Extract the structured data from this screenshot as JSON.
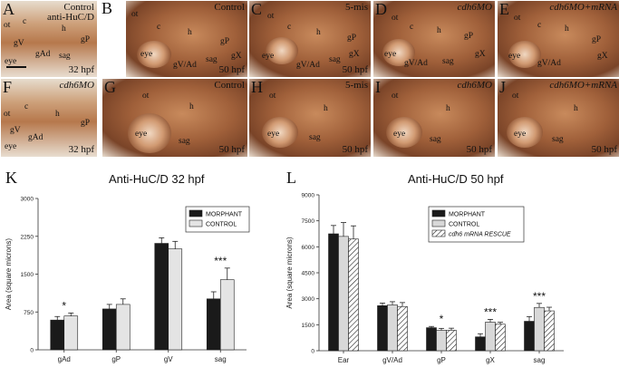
{
  "panels": [
    {
      "letter": "A",
      "title": "Control",
      "title2": "anti-HuC/D",
      "time": "32 hpf",
      "labels": {
        "ot": "ot",
        "c": "c",
        "h": "h",
        "gP": "gP",
        "gV": "gV",
        "gAd": "gAd",
        "sag": "sag",
        "eye": "eye"
      }
    },
    {
      "letter": "B",
      "title": "Control",
      "time": "50 hpf",
      "labels": {
        "ot": "ot",
        "c": "c",
        "h": "h",
        "gP": "gP",
        "gX": "gX",
        "gVAd": "gV/Ad",
        "sag": "sag",
        "eye": "eye"
      }
    },
    {
      "letter": "C",
      "title": "5-mis",
      "time": "50 hpf",
      "labels": {
        "ot": "ot",
        "c": "c",
        "h": "h",
        "gP": "gP",
        "gX": "gX",
        "gVAd": "gV/Ad",
        "sag": "sag",
        "eye": "eye"
      }
    },
    {
      "letter": "D",
      "title": "cdh6MO",
      "labels": {
        "ot": "ot",
        "c": "c",
        "h": "h",
        "gP": "gP",
        "gX": "gX",
        "gVAd": "gV/Ad",
        "sag": "sag",
        "eye": "eye"
      }
    },
    {
      "letter": "E",
      "title": "cdh6MO+mRNA",
      "labels": {
        "ot": "ot",
        "c": "c",
        "h": "h",
        "gP": "gP",
        "gX": "gX",
        "gVAd": "gV/Ad",
        "eye": "eye"
      }
    },
    {
      "letter": "F",
      "title": "cdh6MO",
      "time": "32 hpf",
      "labels": {
        "ot": "ot",
        "c": "c",
        "h": "h",
        "gP": "gP",
        "gV": "gV",
        "gAd": "gAd",
        "eye": "eye"
      }
    },
    {
      "letter": "G",
      "title": "Control",
      "time": "50 hpf",
      "labels": {
        "ot": "ot",
        "h": "h",
        "sag": "sag",
        "eye": "eye"
      }
    },
    {
      "letter": "H",
      "title": "5-mis",
      "time": "50 hpf",
      "labels": {
        "ot": "ot",
        "h": "h",
        "sag": "sag",
        "eye": "eye"
      }
    },
    {
      "letter": "I",
      "title": "cdh6MO",
      "time": "50 hpf",
      "labels": {
        "ot": "ot",
        "h": "h",
        "sag": "sag",
        "eye": "eye"
      }
    },
    {
      "letter": "J",
      "title": "cdh6MO+mRNA",
      "time": "50 hpf",
      "labels": {
        "ot": "ot",
        "h": "h",
        "sag": "sag",
        "eye": "eye"
      }
    }
  ],
  "chart_letters": {
    "K": "K",
    "L": "L"
  },
  "chart_data": [
    {
      "type": "bar",
      "title": "Anti-HuC/D 32 hpf",
      "ylabel": "Area (square microns)",
      "ylim": [
        0,
        3000
      ],
      "yticks": [
        0,
        750,
        1500,
        2250,
        3000
      ],
      "categories": [
        "gAd",
        "gP",
        "gV",
        "sag"
      ],
      "series": [
        {
          "name": "MORPHANT",
          "color": "#1a1a1a",
          "values": [
            590,
            810,
            2110,
            1010
          ],
          "errors": [
            70,
            90,
            110,
            140
          ]
        },
        {
          "name": "CONTROL",
          "color": "#e4e4e4",
          "values": [
            670,
            900,
            2000,
            1390
          ],
          "errors": [
            60,
            110,
            150,
            230
          ]
        }
      ],
      "annotations": [
        {
          "category": "gAd",
          "text": "*"
        },
        {
          "category": "sag",
          "text": "***"
        }
      ],
      "legend": "top-right"
    },
    {
      "type": "bar",
      "title": "Anti-HuC/D 50 hpf",
      "ylabel": "Area (square microns)",
      "ylim": [
        0,
        9000
      ],
      "yticks": [
        0,
        1500,
        3000,
        4500,
        6000,
        7500,
        9000
      ],
      "categories": [
        "Ear",
        "gV/Ad",
        "gP",
        "gX",
        "sag"
      ],
      "series": [
        {
          "name": "MORPHANT",
          "color": "#1a1a1a",
          "pattern": "solid",
          "values": [
            6750,
            2600,
            1330,
            800,
            1700
          ],
          "errors": [
            480,
            150,
            70,
            180,
            270
          ]
        },
        {
          "name": "CONTROL",
          "color": "#d8d8d8",
          "pattern": "solid",
          "values": [
            6600,
            2650,
            1180,
            1650,
            2500
          ],
          "errors": [
            800,
            180,
            110,
            160,
            230
          ]
        },
        {
          "name": "cdh6 mRNA RESCUE",
          "color": "#ffffff",
          "pattern": "hatch",
          "values": [
            6450,
            2550,
            1180,
            1530,
            2300
          ],
          "errors": [
            760,
            230,
            120,
            110,
            210
          ]
        }
      ],
      "annotations": [
        {
          "category": "gP",
          "text": "*"
        },
        {
          "category": "gX",
          "text": "***"
        },
        {
          "category": "sag",
          "text": "***"
        }
      ],
      "legend": "top-right"
    }
  ]
}
